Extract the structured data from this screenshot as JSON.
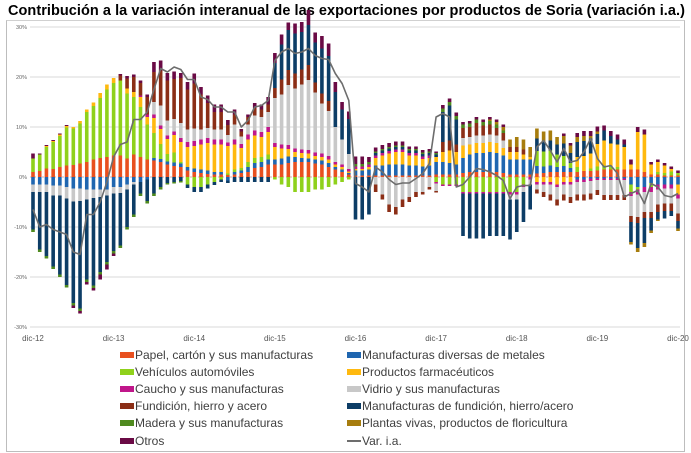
{
  "chart_data": {
    "type": "bar",
    "stacked": true,
    "title": "Contribución a la variación interanual de las exportaciones por productos de Soria (variación i.a.)",
    "xlabel": "",
    "ylabel": "",
    "ylim": [
      -30,
      30
    ],
    "y_ticks": [
      "-30%",
      "-20%",
      "-10%",
      "0%",
      "10%",
      "20%",
      "30%"
    ],
    "y_tick_values": [
      -30,
      -20,
      -10,
      0,
      10,
      20,
      30
    ],
    "x_ticks": [
      "dic-12",
      "dic-13",
      "dic-14",
      "dic-15",
      "dic-16",
      "dic-17",
      "dic-18",
      "dic-19",
      "dic-20"
    ],
    "x_range": [
      "dic-12",
      "dic-20"
    ],
    "grid": true,
    "legend_position": "bottom",
    "series": [
      {
        "name": "Papel, cartón y sus manufacturas",
        "color": "#e8501f",
        "values": [
          1,
          1.2,
          1.7,
          1.6,
          2,
          2.3,
          2.4,
          2.7,
          3,
          3.5,
          3.8,
          4,
          4.3,
          4.3,
          3.7,
          4.5,
          4,
          3.5,
          3.3,
          3,
          2.5,
          2.2,
          2,
          1.3,
          1,
          0.8,
          0.6,
          0.5,
          0.5,
          0.4,
          0.5,
          0.8,
          1,
          1.8,
          2,
          2.5,
          2.5,
          2.5,
          2.8,
          3,
          3,
          3,
          2.7,
          2.5,
          2,
          1.5,
          1,
          0.5,
          0.3,
          0.3,
          0.3,
          0.3,
          0.3,
          0.3,
          0.3,
          0.3,
          0.3,
          0.3,
          0.3,
          0.3,
          0.5,
          0.5,
          0.5,
          0.5,
          0.8,
          1,
          1,
          1,
          1,
          1,
          0.8,
          0.5,
          0.5,
          0.5,
          0.5,
          0.7,
          0.8,
          1,
          1,
          1,
          1,
          1,
          1.2,
          1.2,
          1.3,
          1.5,
          1.5,
          1.5,
          1.5,
          1.5,
          1.5,
          1,
          0.5,
          0.5,
          0.3,
          0.3,
          0.3
        ]
      },
      {
        "name": "Manufacturas diversas de metales",
        "color": "#1f66b0",
        "values": [
          -1.5,
          -1.5,
          -1.5,
          -1.7,
          -1.7,
          -2,
          -2.3,
          -2.3,
          -2.5,
          -2.5,
          -2.5,
          -2.5,
          -2,
          -2,
          -1.5,
          -1,
          -1,
          -0.5,
          0.5,
          0.6,
          0.6,
          0.7,
          0.7,
          0.7,
          0.7,
          0.7,
          0.7,
          0.5,
          0.5,
          -0.7,
          0.5,
          0.5,
          1,
          1,
          1,
          1,
          1,
          1.2,
          1.3,
          1,
          0.8,
          0.7,
          0.8,
          0.8,
          0.8,
          0.5,
          0.5,
          0.3,
          1,
          1,
          1.2,
          2,
          2,
          2.2,
          2.2,
          2.2,
          2,
          2,
          1.8,
          2,
          2.5,
          2.5,
          2.3,
          2,
          3,
          3.5,
          3.8,
          3.8,
          4,
          3.8,
          3.5,
          3,
          3,
          3,
          3,
          1.5,
          1.3,
          1.3,
          1,
          1.2,
          0.8,
          -0.5,
          -0.5,
          -0.3,
          -0.3,
          -0.3,
          -0.3,
          -0.3,
          -0.3,
          -1.5,
          -2,
          -2,
          -1.2,
          -1.5,
          -1.5,
          -1.5,
          -1.5
        ]
      },
      {
        "name": "Vehículos automóviles",
        "color": "#8fd11b",
        "values": [
          2.7,
          3.3,
          4.3,
          5.4,
          6.2,
          7.6,
          7.3,
          8,
          10,
          10.7,
          12,
          13.5,
          14.5,
          15,
          13,
          11.5,
          10,
          7,
          5,
          3,
          1.5,
          2,
          0.3,
          -1.5,
          -2,
          -2,
          -1.5,
          -1,
          -0.5,
          0.3,
          0.5,
          0.5,
          1,
          1,
          1,
          1,
          -0.5,
          -1.5,
          -2,
          -3,
          -3,
          -3,
          -2.5,
          -2.5,
          -2,
          -1.5,
          -1,
          -0.5,
          0,
          0,
          0,
          0,
          0,
          0,
          0,
          0,
          0,
          0,
          0,
          0,
          -1,
          -1.5,
          -1.5,
          -1.5,
          -3,
          -3,
          -3,
          -3,
          -3,
          -3,
          -3,
          -3,
          -3,
          -1.5,
          0,
          3,
          3,
          3,
          2.5,
          2,
          1,
          1,
          0,
          0.5,
          0.8,
          0.8,
          0.7,
          0.5,
          0,
          -1.5,
          -0.5,
          0,
          -0.8,
          0.5,
          0.5,
          0.8,
          0.5
        ]
      },
      {
        "name": "Productos farmacéuticos",
        "color": "#ffb90f",
        "values": [
          0,
          0,
          0.2,
          0.2,
          0.3,
          0.3,
          0.3,
          0.5,
          0.5,
          0.7,
          1,
          1,
          1,
          0,
          1,
          1,
          2,
          1.5,
          3,
          3,
          3,
          3.5,
          4,
          4,
          4.5,
          5,
          5.5,
          5.5,
          5.5,
          5.5,
          5,
          4,
          4.5,
          4.5,
          4,
          4.5,
          2.5,
          2,
          1.5,
          1,
          1,
          1,
          0.7,
          0.7,
          0.7,
          0.5,
          0.5,
          0.3,
          0.3,
          0.3,
          0.5,
          1.5,
          2,
          2.2,
          2.5,
          2.5,
          2,
          2,
          1.5,
          1.5,
          1,
          2,
          2.5,
          2.5,
          2.5,
          2,
          2,
          2,
          2,
          2,
          1.5,
          1.5,
          1.5,
          1,
          0.5,
          -1,
          -1,
          -1,
          -1.5,
          -1,
          -1,
          2,
          3,
          3,
          4.5,
          5,
          4.5,
          4.5,
          4.5,
          1,
          7.5,
          7.5,
          2,
          2,
          1.5,
          0.5,
          -2
        ]
      },
      {
        "name": "Caucho y sus manufacturas",
        "color": "#c0168a",
        "values": [
          0,
          0,
          0,
          0,
          0,
          0,
          0,
          0,
          0,
          0,
          0,
          0,
          0,
          0,
          0,
          0,
          0.3,
          0.5,
          0.7,
          0.7,
          0.7,
          0.7,
          0.8,
          1,
          1,
          1,
          1,
          1,
          1,
          0.7,
          1,
          0.8,
          1,
          1,
          1,
          1,
          0.8,
          0.8,
          0.8,
          0.7,
          0.7,
          0.7,
          0.7,
          0.7,
          0.7,
          0.5,
          0.5,
          0.5,
          0.5,
          0.5,
          0.5,
          0.5,
          0.5,
          0.5,
          0.5,
          0.5,
          0.5,
          0.5,
          0.5,
          0.5,
          -0.3,
          -0.3,
          -0.3,
          -0.3,
          -0.3,
          -0.3,
          -0.3,
          -0.3,
          -0.3,
          -0.3,
          -0.3,
          -0.5,
          -0.5,
          -0.5,
          -0.5,
          -0.5,
          -0.5,
          -0.5,
          -0.5,
          -0.5,
          -0.5,
          -0.5,
          -0.5,
          -0.5,
          -0.3,
          -0.3,
          -0.3,
          -0.3,
          -0.3,
          -0.8,
          -1,
          -1,
          -1,
          -1,
          -0.8,
          -0.8,
          -0.8
        ]
      },
      {
        "name": "Vidrio y sus manufacturas",
        "color": "#c8c8c8",
        "values": [
          -1.5,
          -1.5,
          -1.5,
          -2,
          -2,
          -2.3,
          -2.6,
          -2.5,
          -2,
          -1.7,
          -1.5,
          -1.2,
          -1.3,
          -1.2,
          -1,
          -0.5,
          0,
          0,
          2.5,
          4,
          3,
          2.5,
          3,
          2.5,
          2.5,
          2,
          2,
          2,
          2,
          1.5,
          3,
          1.5,
          2,
          3,
          3,
          3,
          9,
          10,
          12,
          12,
          13,
          14,
          12,
          10,
          9,
          7,
          5,
          3,
          0,
          0,
          0,
          -1.5,
          -3.5,
          -5.5,
          -6,
          -4.5,
          -4,
          -3,
          -3,
          -2,
          -1.5,
          0,
          0,
          0,
          1.5,
          1.5,
          1.5,
          1.5,
          1.5,
          1.5,
          1.5,
          -1,
          -1,
          -1,
          -1,
          -1,
          -1.5,
          -2,
          -2.5,
          -2,
          -2.5,
          -2.5,
          -2.5,
          -2.5,
          -2,
          -3,
          -3,
          -3,
          -3,
          -4,
          -4.5,
          -4,
          -4,
          -3,
          -3,
          -3,
          -3
        ]
      },
      {
        "name": "Fundición, hierro y acero",
        "color": "#8b2e16",
        "values": [
          0,
          0,
          0,
          0,
          0,
          0,
          0,
          0,
          0,
          0,
          0,
          0,
          0,
          1,
          2,
          3,
          2.5,
          3.5,
          6,
          7,
          8,
          8,
          9,
          8,
          9,
          7,
          5,
          3.5,
          3.5,
          2,
          2,
          1,
          1.5,
          1.5,
          1.5,
          1.5,
          2,
          3,
          3,
          3,
          3,
          3,
          2,
          2,
          2,
          0,
          0,
          0,
          0,
          0,
          0,
          -1.5,
          -1,
          -1.5,
          -1.5,
          -1.5,
          -1,
          -1,
          -0.5,
          -0.5,
          -0.3,
          2,
          2,
          1.5,
          2,
          2,
          2.5,
          2,
          2,
          1.5,
          1.5,
          1,
          1,
          1,
          0,
          -0.8,
          -1,
          -1.2,
          -1.2,
          -1.2,
          -1.2,
          -1.2,
          -1.2,
          -1.2,
          -1,
          -1,
          -1,
          -1,
          -1,
          -1.2,
          -1.2,
          -1.2,
          -1.2,
          -1.5,
          -1.5,
          -1.5,
          -1.5
        ]
      },
      {
        "name": "Manufacturas de fundición, hierro/acero",
        "color": "#0d3d66",
        "values": [
          -7.5,
          -11.5,
          -12.8,
          -14.2,
          -15.8,
          -17.3,
          -20.3,
          -21.5,
          -16,
          -17.5,
          -15,
          -13.3,
          -11.5,
          -10.5,
          -7.5,
          -6,
          -2.3,
          -4.3,
          -3.3,
          -2,
          -1.2,
          -1,
          -0.8,
          -0.7,
          -1,
          -1,
          -0.8,
          -0.6,
          -0.5,
          -0.5,
          -1,
          -1,
          -1,
          -1,
          -1,
          -1,
          5,
          7,
          8,
          8,
          7.5,
          8,
          8,
          9,
          9,
          7,
          6,
          7,
          -8.5,
          -8.5,
          -7.5,
          0.5,
          0.5,
          0.5,
          0.5,
          0.5,
          0.5,
          0.5,
          0.5,
          0.5,
          0.5,
          6,
          7,
          5,
          -8.5,
          -9,
          -9,
          -9,
          -8.5,
          -8.5,
          -8.5,
          -8,
          -6.5,
          -6,
          -5,
          2.5,
          2,
          2,
          2,
          2.5,
          2,
          3,
          3,
          3,
          2,
          2,
          1.5,
          1,
          0.5,
          -4,
          -5,
          -5,
          -2.5,
          -1.5,
          -1.5,
          -1,
          -1.5
        ]
      },
      {
        "name": "Madera y sus manufacturas",
        "color": "#4f8a1f",
        "values": [
          -0.5,
          -0.5,
          -0.5,
          -0.5,
          -0.5,
          -0.5,
          -0.5,
          -0.5,
          -0.5,
          -0.5,
          -0.5,
          -0.5,
          -0.5,
          -0.5,
          -0.5,
          -0.5,
          -0.5,
          -0.5,
          -0.5,
          -0.5,
          -0.3,
          -0.3,
          -0.3,
          0,
          0,
          0,
          0,
          0,
          0,
          0,
          0,
          0,
          0,
          0,
          0,
          0,
          0,
          0,
          0,
          0,
          0,
          0,
          0,
          0,
          0,
          0,
          0,
          0,
          0.5,
          0.5,
          0.5,
          0.3,
          0.3,
          0.3,
          0.3,
          0.3,
          0.3,
          0.3,
          0.3,
          0.3,
          0.3,
          0.7,
          0.7,
          0.7,
          0.7,
          0.7,
          0.7,
          0.7,
          0.7,
          0.7,
          0.5,
          0,
          0,
          0,
          0,
          0,
          0,
          0,
          0,
          0,
          0,
          0,
          0,
          0,
          0,
          0,
          0,
          0,
          0,
          0,
          0,
          0,
          0,
          0,
          0,
          0,
          0
        ]
      },
      {
        "name": "Plantas vivas, productos de floricultura",
        "color": "#a77d0e",
        "values": [
          0,
          0,
          0,
          0,
          0,
          0,
          0,
          0,
          0,
          0,
          0,
          0,
          0,
          0,
          0,
          0,
          0,
          0,
          0,
          0,
          0,
          0,
          0,
          0,
          0,
          0,
          0,
          0,
          0,
          0,
          0,
          0,
          0,
          0,
          0,
          0,
          0,
          0,
          0,
          0,
          0,
          0,
          0,
          0,
          0,
          0,
          0,
          0,
          0,
          0,
          0,
          0,
          0,
          0,
          0,
          0,
          0,
          0,
          0,
          0,
          0,
          0,
          0,
          0,
          0,
          0,
          0,
          0,
          0.3,
          0.5,
          0.7,
          1.5,
          2,
          2,
          2,
          2,
          2,
          2,
          1.5,
          1.5,
          1.5,
          1,
          1,
          0.5,
          0.5,
          0,
          0,
          0,
          0,
          -0.5,
          -0.8,
          -0.8,
          -0.5,
          -0.3,
          0,
          0,
          -0.5
        ]
      },
      {
        "name": "Otros",
        "color": "#6a0a45",
        "values": [
          1,
          0.2,
          0.2,
          0.2,
          0.2,
          0.2,
          -0.5,
          -0.5,
          -0.5,
          -0.5,
          -1,
          -1,
          -0.5,
          0.3,
          0.5,
          0.5,
          0.5,
          0.5,
          2,
          2,
          1.5,
          1.5,
          1,
          1.5,
          2,
          1.5,
          1.5,
          1.5,
          1.5,
          1,
          1,
          0.5,
          0.5,
          1,
          1,
          1.5,
          2,
          2,
          1.5,
          2,
          2,
          3,
          2,
          2.5,
          2.5,
          2,
          1.5,
          1.5,
          1.5,
          1.5,
          1,
          0.8,
          0.8,
          0.8,
          0.8,
          0.8,
          0.5,
          0.5,
          0.5,
          0.5,
          0.3,
          0.7,
          0.7,
          0.7,
          0.5,
          0.5,
          0.5,
          0.5,
          0.5,
          0.5,
          0.5,
          0,
          0,
          0,
          0,
          0,
          0,
          0,
          0,
          0.5,
          0.5,
          0.8,
          1,
          1,
          1,
          1,
          1,
          1,
          1,
          1,
          1,
          1,
          0.5,
          0.5,
          0.5,
          0.5,
          0.5
        ]
      }
    ],
    "line": {
      "name": "Var. i.a.",
      "color": "#6d6d6d",
      "values": [
        -6.5,
        -10,
        -9.5,
        -10.5,
        -11,
        -11.5,
        -15,
        -15.5,
        -7.5,
        -7.5,
        -5,
        -1,
        4,
        6.5,
        7,
        11.5,
        11.5,
        13,
        17.5,
        21.7,
        21,
        22,
        21.5,
        19.5,
        19.5,
        16,
        15.5,
        14,
        14,
        13,
        13,
        10,
        11.3,
        14,
        14.3,
        15.3,
        23.3,
        25,
        25.7,
        24.7,
        25,
        25.7,
        24.3,
        23.7,
        23.5,
        20.7,
        18.7,
        15.3,
        -1.3,
        -2,
        -3,
        2,
        1,
        -0.5,
        -1.5,
        -1.2,
        -1.2,
        -0.3,
        0.7,
        2.7,
        12,
        12.7,
        12,
        -2,
        -1.5,
        0,
        1.7,
        1.5,
        1,
        0.3,
        -0.7,
        -4.3,
        -2,
        -1.7,
        -1.7,
        6,
        7.3,
        5.3,
        3,
        5.7,
        3,
        3.3,
        5,
        7.7,
        3.7,
        2,
        2.3,
        0.7,
        -4,
        -3.3,
        -2.7,
        -5.3,
        -1.3,
        -2,
        -3.7,
        -4,
        -3.3
      ]
    }
  }
}
